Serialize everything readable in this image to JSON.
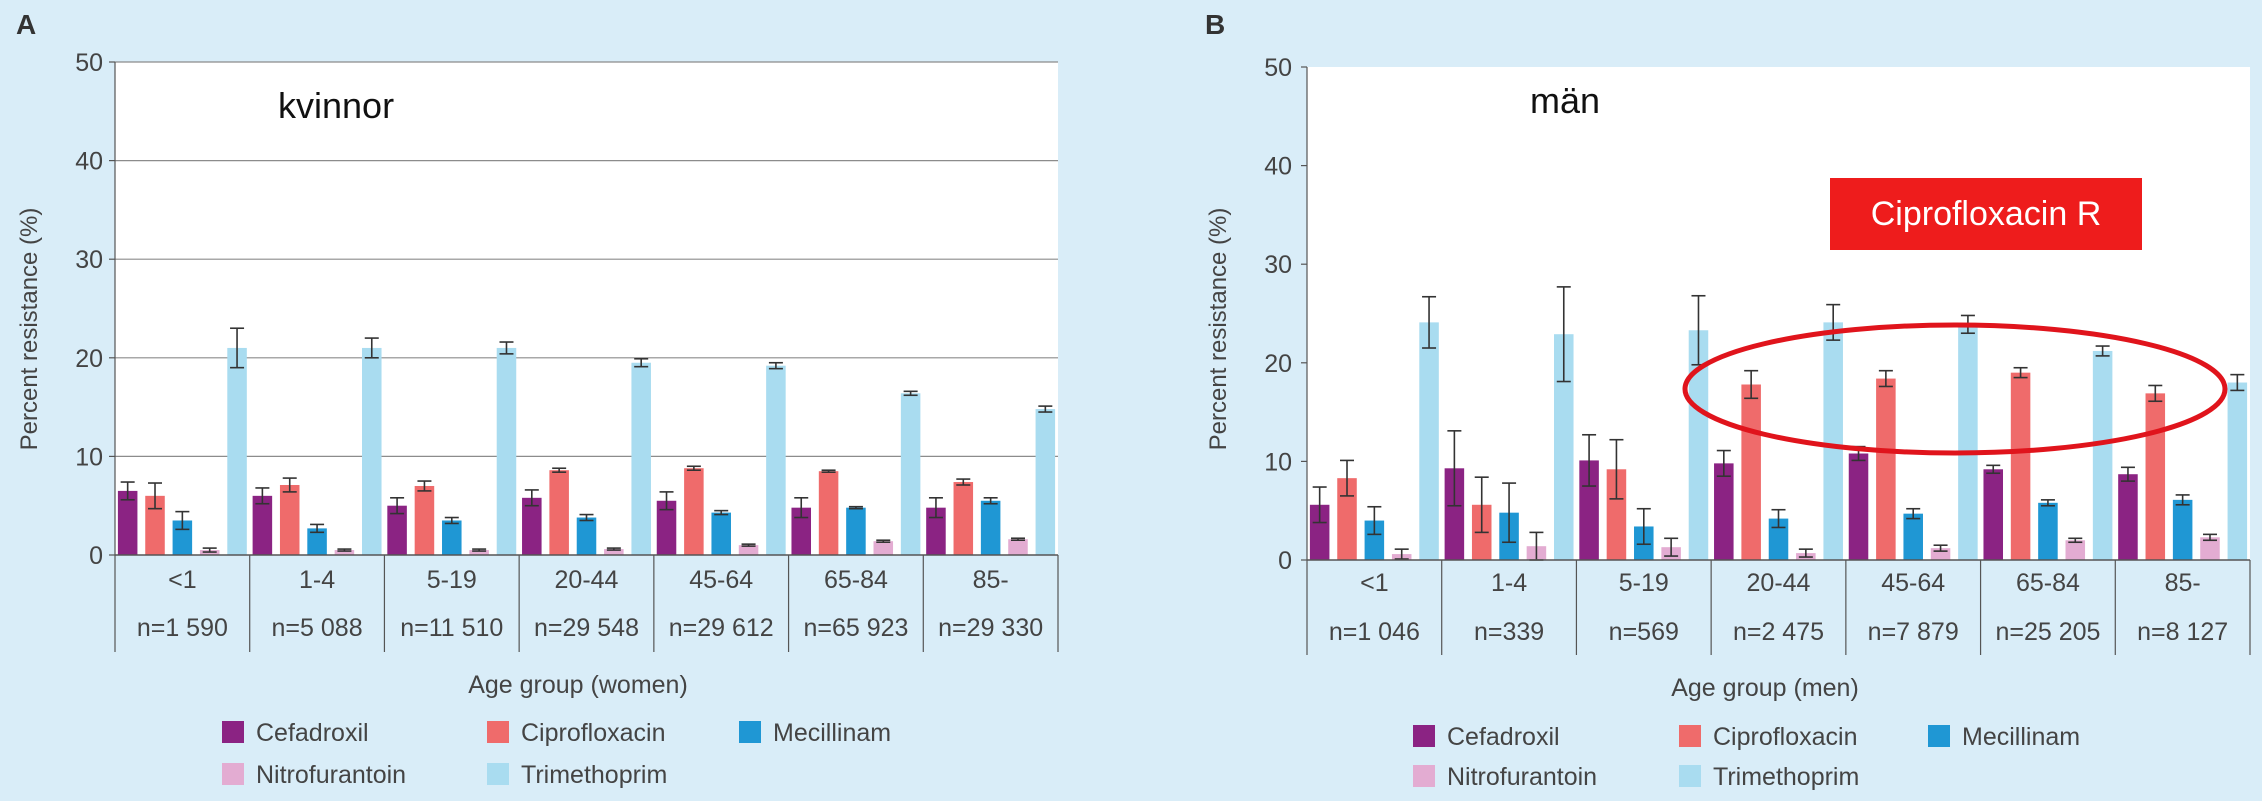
{
  "colors": {
    "background": "#d9edf8",
    "plot_background": "#ffffff",
    "gridline": "#8c8c8c",
    "axis": "#555555",
    "text": "#333333",
    "error_bar": "#333333",
    "callout_fill": "#ee1c1c",
    "callout_text": "#ffffff",
    "ellipse": "#e0141c"
  },
  "chart_data": [
    {
      "type": "bar",
      "panel_label": "A",
      "title": "kvinnor",
      "ylabel": "Percent resistance (%)",
      "xlabel": "Age group (women)",
      "ylim": [
        0,
        50
      ],
      "yticks": [
        0,
        10,
        20,
        30,
        40,
        50
      ],
      "grid": true,
      "legend_position": "bottom",
      "categories": [
        "<1",
        "1-4",
        "5-19",
        "20-44",
        "45-64",
        "65-84",
        "85-"
      ],
      "category_counts": [
        "n=1 590",
        "n=5 088",
        "n=11 510",
        "n=29 548",
        "n=29 612",
        "n=65 923",
        "n=29 330"
      ],
      "series": [
        {
          "name": "Cefadroxil",
          "color": "#8b2383",
          "values": [
            6.5,
            6.0,
            5.0,
            5.8,
            5.5,
            4.8,
            4.8
          ],
          "errors": [
            0.9,
            0.8,
            0.8,
            0.8,
            0.9,
            1.0,
            1.0
          ]
        },
        {
          "name": "Ciprofloxacin",
          "color": "#ef6b6b",
          "values": [
            6.0,
            7.1,
            7.0,
            8.6,
            8.8,
            8.5,
            7.4
          ],
          "errors": [
            1.3,
            0.7,
            0.5,
            0.2,
            0.2,
            0.1,
            0.3
          ]
        },
        {
          "name": "Mecillinam",
          "color": "#1f97d4",
          "values": [
            3.5,
            2.7,
            3.5,
            3.8,
            4.3,
            4.8,
            5.5
          ],
          "errors": [
            0.9,
            0.4,
            0.3,
            0.3,
            0.2,
            0.1,
            0.3
          ]
        },
        {
          "name": "Nitrofurantoin",
          "color": "#e3acd2",
          "values": [
            0.5,
            0.5,
            0.5,
            0.6,
            1.0,
            1.4,
            1.6
          ],
          "errors": [
            0.2,
            0.1,
            0.1,
            0.1,
            0.1,
            0.1,
            0.1
          ]
        },
        {
          "name": "Trimethoprim",
          "color": "#a9dcf0",
          "values": [
            21.0,
            21.0,
            21.0,
            19.5,
            19.2,
            16.4,
            14.8
          ],
          "errors": [
            2.0,
            1.0,
            0.6,
            0.4,
            0.3,
            0.2,
            0.3
          ]
        }
      ]
    },
    {
      "type": "bar",
      "panel_label": "B",
      "title": "män",
      "ylabel": "Percent resistance (%)",
      "xlabel": "Age group (men)",
      "ylim": [
        0,
        50
      ],
      "yticks": [
        0,
        10,
        20,
        30,
        40,
        50
      ],
      "grid": false,
      "legend_position": "bottom",
      "categories": [
        "<1",
        "1-4",
        "5-19",
        "20-44",
        "45-64",
        "65-84",
        "85-"
      ],
      "category_counts": [
        "n=1 046",
        "n=339",
        "n=569",
        "n=2 475",
        "n=7 879",
        "n=25 205",
        "n=8 127"
      ],
      "series": [
        {
          "name": "Cefadroxil",
          "color": "#8b2383",
          "values": [
            5.6,
            9.3,
            10.1,
            9.8,
            10.8,
            9.2,
            8.7
          ],
          "errors": [
            1.8,
            3.8,
            2.6,
            1.3,
            0.7,
            0.4,
            0.7
          ]
        },
        {
          "name": "Ciprofloxacin",
          "color": "#ef6b6b",
          "values": [
            8.3,
            5.6,
            9.2,
            17.8,
            18.4,
            19.0,
            16.9
          ],
          "errors": [
            1.8,
            2.8,
            3.0,
            1.4,
            0.8,
            0.5,
            0.8
          ]
        },
        {
          "name": "Mecillinam",
          "color": "#1f97d4",
          "values": [
            4.0,
            4.8,
            3.4,
            4.2,
            4.7,
            5.8,
            6.1
          ],
          "errors": [
            1.4,
            3.0,
            1.8,
            0.9,
            0.5,
            0.3,
            0.5
          ]
        },
        {
          "name": "Nitrofurantoin",
          "color": "#e3acd2",
          "values": [
            0.6,
            1.4,
            1.3,
            0.7,
            1.2,
            2.0,
            2.3
          ],
          "errors": [
            0.5,
            1.4,
            0.9,
            0.4,
            0.3,
            0.2,
            0.3
          ]
        },
        {
          "name": "Trimethoprim",
          "color": "#a9dcf0",
          "values": [
            24.1,
            22.9,
            23.3,
            24.1,
            23.9,
            21.2,
            18.0
          ],
          "errors": [
            2.6,
            4.8,
            3.5,
            1.8,
            0.9,
            0.5,
            0.8
          ]
        }
      ],
      "annotation": {
        "callout_text": "Ciprofloxacin R",
        "highlighted_categories": [
          "20-44",
          "45-64",
          "65-84",
          "85-"
        ],
        "highlighted_series": "Ciprofloxacin"
      }
    }
  ]
}
